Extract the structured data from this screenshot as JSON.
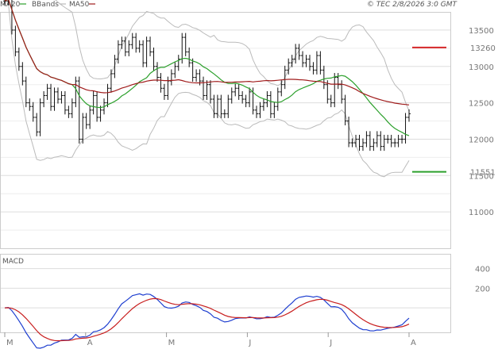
{
  "header": {
    "legend": [
      {
        "label": "MA20",
        "color": "#2ca02c"
      },
      {
        "label": "BBands",
        "color": "#bbbbbb"
      },
      {
        "label": "MA50",
        "color": "#a01c1c"
      }
    ],
    "source_stamp": "© TEC 2/8/2026 3:0 GMT"
  },
  "panels": {
    "macd_label": "MACD"
  },
  "chart_data": [
    {
      "type": "ohlc",
      "panel": "price",
      "title": "",
      "x_axis": {
        "tick_labels": [
          "M",
          "A",
          "M",
          "J",
          "J",
          "A"
        ]
      },
      "y_axis": {
        "range": [
          10500,
          13750
        ],
        "ticks": [
          11000,
          11500,
          12000,
          12500,
          13000,
          13500
        ],
        "position": "right"
      },
      "grid": true,
      "close": [
        13900,
        13950,
        13500,
        13200,
        13000,
        12800,
        12500,
        12450,
        12300,
        12100,
        12500,
        12600,
        12700,
        12450,
        12650,
        12550,
        12600,
        12400,
        12350,
        12500,
        12800,
        12000,
        12300,
        12200,
        12400,
        12600,
        12300,
        12400,
        12500,
        12700,
        12900,
        13100,
        13300,
        13350,
        13200,
        13300,
        13400,
        13250,
        13300,
        13050,
        13350,
        13200,
        13000,
        12850,
        12700,
        12600,
        12800,
        12900,
        13000,
        13100,
        13400,
        13200,
        13050,
        12850,
        12900,
        12800,
        12600,
        12750,
        12550,
        12350,
        12550,
        12350,
        12350,
        12550,
        12650,
        12700,
        12600,
        12550,
        12500,
        12650,
        12400,
        12350,
        12450,
        12500,
        12600,
        12350,
        12450,
        12650,
        12750,
        12950,
        13050,
        13100,
        13250,
        13150,
        13050,
        13100,
        13000,
        12950,
        13150,
        12950,
        12750,
        12550,
        12500,
        12850,
        12750,
        12550,
        12250,
        11950,
        11950,
        12000,
        11900,
        11950,
        12050,
        11900,
        11950,
        12050,
        11900,
        12000,
        12000,
        11950,
        11950,
        12000,
        12000,
        12300,
        12350
      ],
      "horizontal_markers": [
        {
          "value": 13260,
          "label": "13260",
          "color": "#d62728"
        },
        {
          "value": 11551,
          "label": "11551",
          "color": "#2ca02c"
        }
      ],
      "series": [
        {
          "name": "MA20",
          "color": "#2ca02c",
          "kind": "close_sma",
          "period": 20
        },
        {
          "name": "MA50",
          "color": "#a01c1c",
          "kind": "close_sma",
          "period": 50
        },
        {
          "name": "BBands",
          "color": "#bbbbbb",
          "kind": "bollinger",
          "period": 20,
          "stdev": 2
        }
      ]
    },
    {
      "type": "line",
      "panel": "macd",
      "title": "MACD",
      "y_axis": {
        "range": [
          -250,
          550
        ],
        "ticks": [
          200,
          400
        ],
        "position": "right"
      },
      "grid": true,
      "series": [
        {
          "name": "",
          "color": "#1f3fd0",
          "kind": "macd",
          "fast": 12,
          "slow": 26
        },
        {
          "name": "",
          "color": "#c81e1e",
          "kind": "signal",
          "period": 9
        }
      ]
    }
  ]
}
